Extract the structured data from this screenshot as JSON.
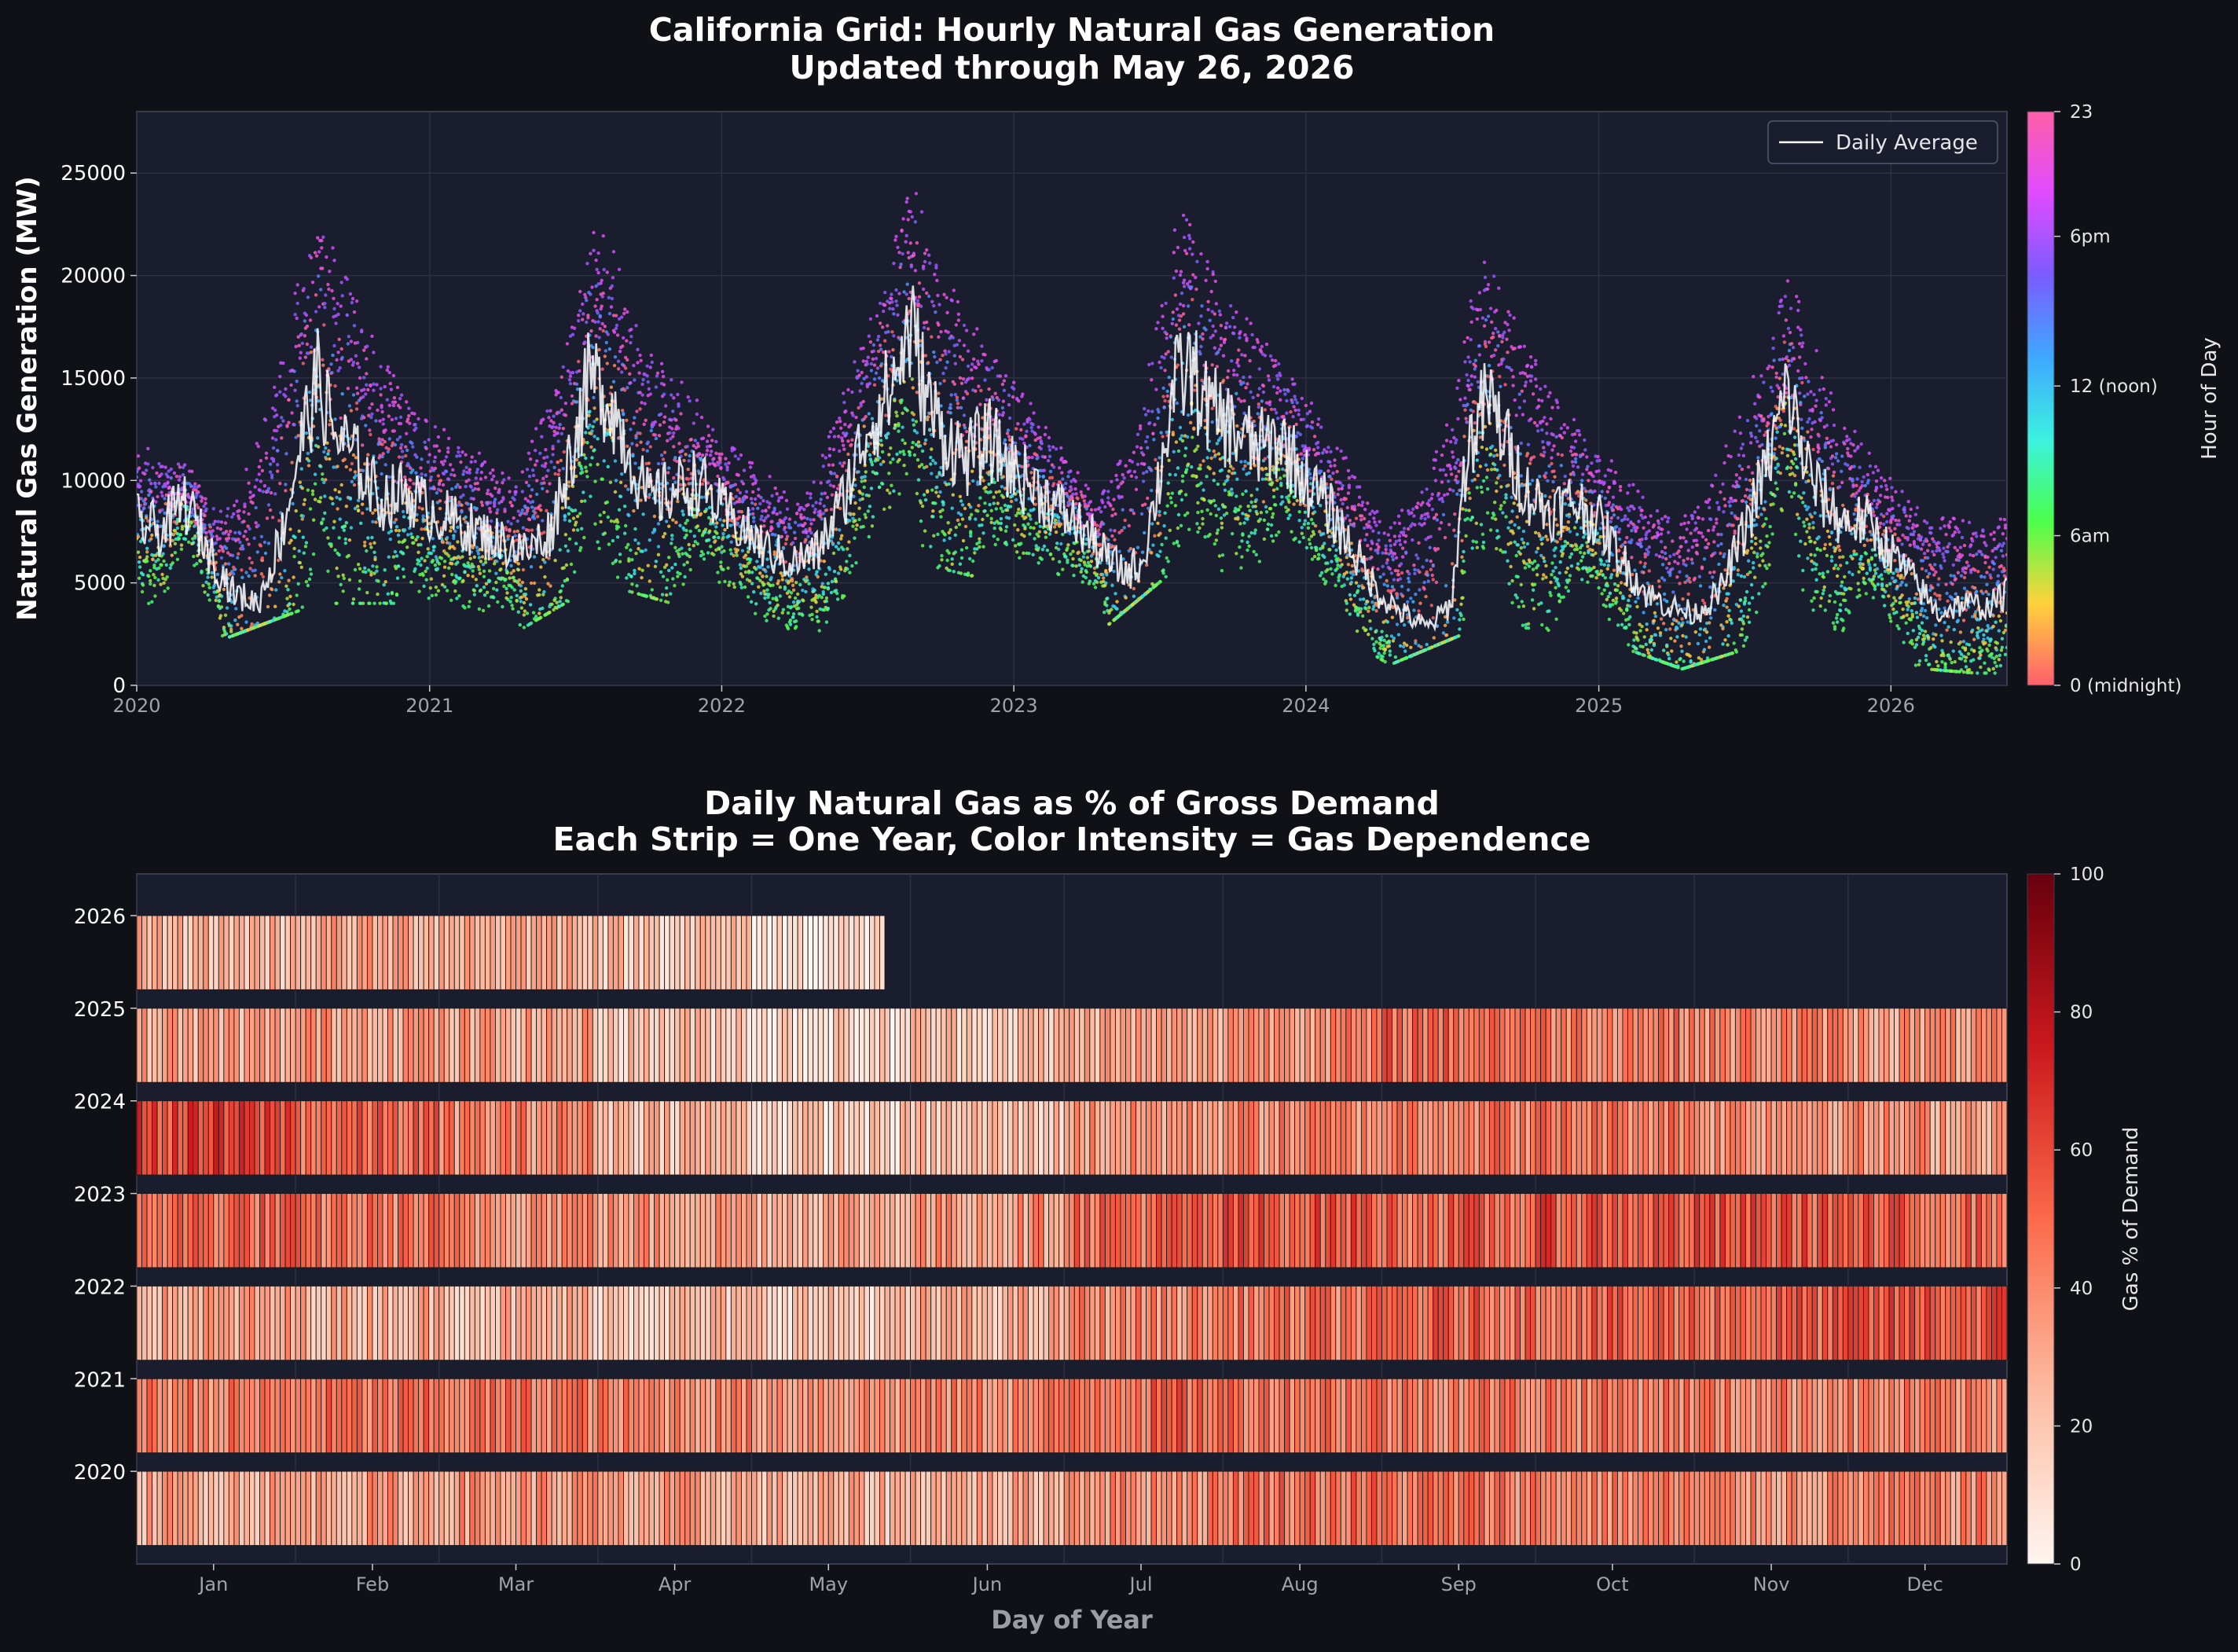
{
  "chart_data": [
    {
      "type": "scatter",
      "title": "California Grid: Hourly Natural Gas Generation",
      "subtitle": "Updated through May 26, 2026",
      "xlabel": "",
      "ylabel": "Natural Gas Generation (MW)",
      "xlim": [
        "2020-01-01",
        "2026-05-26"
      ],
      "ylim": [
        0,
        28000
      ],
      "xticks": [
        "2020",
        "2021",
        "2022",
        "2023",
        "2024",
        "2025",
        "2026"
      ],
      "yticks": [
        0,
        5000,
        10000,
        15000,
        20000,
        25000
      ],
      "grid": true,
      "legend": {
        "position": "top-right",
        "entries": [
          "Daily Average"
        ]
      },
      "line_color": "#ffffff",
      "colorbar": {
        "label": "Hour of Day",
        "range": [
          0,
          23
        ],
        "ticks": [
          {
            "value": 0,
            "label": "0 (midnight)"
          },
          {
            "value": 6,
            "label": "6am"
          },
          {
            "value": 12,
            "label": "12 (noon)"
          },
          {
            "value": 18,
            "label": "6pm"
          },
          {
            "value": 23,
            "label": "23"
          }
        ],
        "colors": [
          "#ff5f6d",
          "#ffd23c",
          "#4bff4b",
          "#3cf2e0",
          "#3fa8ff",
          "#7a5cff",
          "#e04bff",
          "#ff5fa8"
        ]
      },
      "daily_average": {
        "x": [
          "2020-01-01",
          "2020-02-01",
          "2020-03-01",
          "2020-04-01",
          "2020-05-01",
          "2020-06-01",
          "2020-07-01",
          "2020-07-25",
          "2020-08-15",
          "2020-09-01",
          "2020-10-01",
          "2020-11-01",
          "2020-12-01",
          "2021-01-01",
          "2021-02-01",
          "2021-03-01",
          "2021-04-01",
          "2021-05-01",
          "2021-06-01",
          "2021-07-01",
          "2021-07-20",
          "2021-08-15",
          "2021-09-01",
          "2021-10-01",
          "2021-11-01",
          "2021-12-01",
          "2022-01-01",
          "2022-02-01",
          "2022-03-01",
          "2022-04-01",
          "2022-05-01",
          "2022-06-01",
          "2022-07-01",
          "2022-08-01",
          "2022-08-25",
          "2022-09-15",
          "2022-10-01",
          "2022-11-01",
          "2022-12-01",
          "2023-01-01",
          "2023-02-01",
          "2023-03-01",
          "2023-04-01",
          "2023-05-01",
          "2023-05-20",
          "2023-06-10",
          "2023-07-01",
          "2023-07-20",
          "2023-08-10",
          "2023-09-01",
          "2023-10-01",
          "2023-11-01",
          "2023-12-01",
          "2024-01-01",
          "2024-02-01",
          "2024-03-01",
          "2024-04-01",
          "2024-05-01",
          "2024-06-01",
          "2024-07-01",
          "2024-07-20",
          "2024-08-15",
          "2024-09-01",
          "2024-10-01",
          "2024-11-01",
          "2024-12-01",
          "2025-01-01",
          "2025-02-01",
          "2025-03-01",
          "2025-04-01",
          "2025-05-01",
          "2025-06-01",
          "2025-07-01",
          "2025-08-01",
          "2025-08-25",
          "2025-09-15",
          "2025-10-01",
          "2025-11-01",
          "2025-12-01",
          "2026-01-01",
          "2026-02-01",
          "2026-03-01",
          "2026-04-01",
          "2026-05-01",
          "2026-05-26"
        ],
        "y": [
          8000,
          7500,
          9000,
          6500,
          4500,
          4000,
          7500,
          12000,
          15000,
          12500,
          11000,
          9000,
          9500,
          8500,
          8000,
          7500,
          7000,
          6500,
          7500,
          12000,
          15000,
          14000,
          12000,
          9000,
          9500,
          10000,
          8500,
          7500,
          6500,
          6000,
          6500,
          9000,
          12500,
          14500,
          17500,
          14000,
          12500,
          11000,
          12000,
          10500,
          9500,
          8500,
          7500,
          6000,
          5500,
          6000,
          10000,
          14500,
          15500,
          13500,
          12500,
          11500,
          12000,
          10000,
          8500,
          6500,
          4500,
          3500,
          2800,
          4000,
          11500,
          14000,
          12500,
          9500,
          8500,
          9000,
          8000,
          6000,
          4500,
          3800,
          3500,
          4500,
          7500,
          11000,
          14500,
          11000,
          9500,
          8000,
          8000,
          6500,
          5000,
          3500,
          4000,
          3800,
          4500
        ]
      },
      "hourly_envelope": {
        "x": [
          "2020-01-15",
          "2020-04-15",
          "2020-08-15",
          "2020-12-15",
          "2021-04-15",
          "2021-08-01",
          "2021-12-15",
          "2022-04-15",
          "2022-09-01",
          "2022-12-15",
          "2023-04-15",
          "2023-08-01",
          "2023-12-15",
          "2024-04-15",
          "2024-08-15",
          "2024-12-15",
          "2025-04-15",
          "2025-09-01",
          "2025-12-15",
          "2026-04-15"
        ],
        "min": [
          3000,
          2200,
          4000,
          4000,
          2500,
          5000,
          3500,
          2000,
          6000,
          5000,
          2500,
          6000,
          4000,
          1000,
          3000,
          2500,
          800,
          2500,
          1000,
          600
        ],
        "max": [
          12500,
          9500,
          26000,
          15000,
          11000,
          25000,
          13500,
          10000,
          26500,
          17000,
          9500,
          26000,
          16000,
          9000,
          23000,
          13000,
          10000,
          21000,
          11000,
          9500
        ]
      }
    },
    {
      "type": "heatmap",
      "title": "Daily Natural Gas as % of Gross Demand",
      "subtitle": "Each Strip = One Year, Color Intensity = Gas Dependence",
      "xlabel": "Day of Year",
      "ylabel": "",
      "years": [
        2020,
        2021,
        2022,
        2023,
        2024,
        2025,
        2026
      ],
      "months": [
        "Jan",
        "Feb",
        "Mar",
        "Apr",
        "May",
        "Jun",
        "Jul",
        "Aug",
        "Sep",
        "Oct",
        "Nov",
        "Dec"
      ],
      "colorbar": {
        "label": "Gas % of Demand",
        "range": [
          0,
          100
        ],
        "ticks": [
          0,
          20,
          40,
          60,
          80,
          100
        ],
        "colors": [
          "#fff5f0",
          "#fcbba1",
          "#fb6a4a",
          "#cb181d",
          "#67000d"
        ]
      },
      "monthly_gas_pct": {
        "2020": [
          30,
          32,
          35,
          30,
          25,
          28,
          40,
          48,
          45,
          42,
          38,
          40
        ],
        "2021": [
          42,
          45,
          45,
          40,
          38,
          40,
          50,
          48,
          45,
          45,
          42,
          40
        ],
        "2022": [
          30,
          28,
          25,
          20,
          18,
          25,
          40,
          45,
          50,
          50,
          52,
          55
        ],
        "2023": [
          50,
          45,
          40,
          35,
          30,
          35,
          50,
          55,
          50,
          55,
          55,
          50
        ],
        "2024": [
          60,
          50,
          40,
          25,
          15,
          20,
          35,
          40,
          45,
          45,
          40,
          35
        ],
        "2025": [
          30,
          35,
          30,
          20,
          12,
          20,
          30,
          40,
          50,
          45,
          40,
          35
        ],
        "2026": [
          25,
          30,
          30,
          20,
          8
        ]
      },
      "last_year_days": 146
    }
  ]
}
